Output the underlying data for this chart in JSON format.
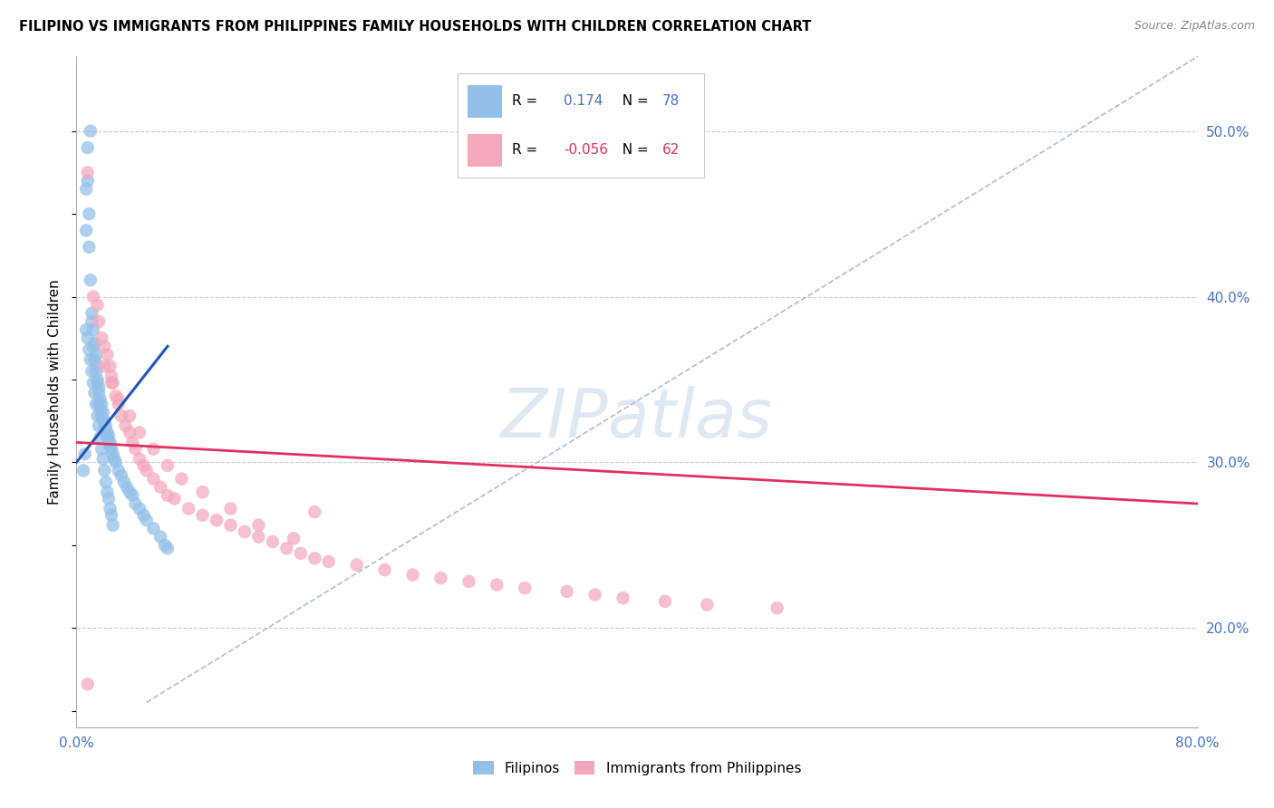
{
  "title": "FILIPINO VS IMMIGRANTS FROM PHILIPPINES FAMILY HOUSEHOLDS WITH CHILDREN CORRELATION CHART",
  "source": "Source: ZipAtlas.com",
  "ylabel": "Family Households with Children",
  "x_min": 0.0,
  "x_max": 0.8,
  "y_min": 0.14,
  "y_max": 0.545,
  "y_ticks": [
    0.2,
    0.3,
    0.4,
    0.5
  ],
  "blue_color": "#92C0E8",
  "pink_color": "#F5A8BB",
  "blue_line_color": "#2255BB",
  "pink_line_color": "#E03060",
  "dashed_line_color": "#AABFD8",
  "watermark_text": "ZIPatlas",
  "legend_r_blue": "0.174",
  "legend_n_blue": "78",
  "legend_r_pink": "-0.056",
  "legend_n_pink": "62",
  "blue_x": [
    0.005,
    0.006,
    0.007,
    0.007,
    0.008,
    0.008,
    0.009,
    0.009,
    0.01,
    0.01,
    0.011,
    0.011,
    0.012,
    0.012,
    0.013,
    0.013,
    0.014,
    0.014,
    0.015,
    0.015,
    0.015,
    0.016,
    0.016,
    0.016,
    0.017,
    0.017,
    0.018,
    0.018,
    0.019,
    0.019,
    0.02,
    0.02,
    0.021,
    0.021,
    0.022,
    0.022,
    0.023,
    0.023,
    0.024,
    0.024,
    0.025,
    0.026,
    0.027,
    0.028,
    0.03,
    0.032,
    0.034,
    0.036,
    0.038,
    0.04,
    0.042,
    0.045,
    0.048,
    0.05,
    0.055,
    0.06,
    0.063,
    0.065,
    0.007,
    0.008,
    0.009,
    0.01,
    0.011,
    0.012,
    0.013,
    0.014,
    0.015,
    0.016,
    0.017,
    0.018,
    0.019,
    0.02,
    0.021,
    0.022,
    0.023,
    0.024,
    0.025,
    0.026
  ],
  "blue_y": [
    0.295,
    0.305,
    0.44,
    0.465,
    0.49,
    0.47,
    0.45,
    0.43,
    0.41,
    0.5,
    0.385,
    0.39,
    0.37,
    0.38,
    0.362,
    0.372,
    0.355,
    0.365,
    0.35,
    0.358,
    0.348,
    0.342,
    0.335,
    0.345,
    0.332,
    0.338,
    0.328,
    0.335,
    0.325,
    0.33,
    0.32,
    0.325,
    0.318,
    0.322,
    0.315,
    0.318,
    0.312,
    0.316,
    0.31,
    0.312,
    0.308,
    0.305,
    0.302,
    0.3,
    0.295,
    0.292,
    0.288,
    0.285,
    0.282,
    0.28,
    0.275,
    0.272,
    0.268,
    0.265,
    0.26,
    0.255,
    0.25,
    0.248,
    0.38,
    0.375,
    0.368,
    0.362,
    0.355,
    0.348,
    0.342,
    0.335,
    0.328,
    0.322,
    0.315,
    0.308,
    0.302,
    0.295,
    0.288,
    0.282,
    0.278,
    0.272,
    0.268,
    0.262
  ],
  "pink_x": [
    0.008,
    0.012,
    0.015,
    0.016,
    0.018,
    0.02,
    0.022,
    0.024,
    0.025,
    0.026,
    0.028,
    0.03,
    0.032,
    0.035,
    0.038,
    0.04,
    0.042,
    0.045,
    0.048,
    0.05,
    0.055,
    0.06,
    0.065,
    0.07,
    0.08,
    0.09,
    0.1,
    0.11,
    0.12,
    0.13,
    0.14,
    0.15,
    0.16,
    0.17,
    0.18,
    0.2,
    0.22,
    0.24,
    0.26,
    0.28,
    0.3,
    0.32,
    0.35,
    0.37,
    0.39,
    0.42,
    0.45,
    0.5,
    0.17,
    0.02,
    0.025,
    0.03,
    0.038,
    0.045,
    0.055,
    0.065,
    0.075,
    0.09,
    0.11,
    0.13,
    0.155,
    0.008
  ],
  "pink_y": [
    0.475,
    0.4,
    0.395,
    0.385,
    0.375,
    0.37,
    0.365,
    0.358,
    0.352,
    0.348,
    0.34,
    0.335,
    0.328,
    0.322,
    0.318,
    0.312,
    0.308,
    0.302,
    0.298,
    0.295,
    0.29,
    0.285,
    0.28,
    0.278,
    0.272,
    0.268,
    0.265,
    0.262,
    0.258,
    0.255,
    0.252,
    0.248,
    0.245,
    0.242,
    0.24,
    0.238,
    0.235,
    0.232,
    0.23,
    0.228,
    0.226,
    0.224,
    0.222,
    0.22,
    0.218,
    0.216,
    0.214,
    0.212,
    0.27,
    0.358,
    0.348,
    0.338,
    0.328,
    0.318,
    0.308,
    0.298,
    0.29,
    0.282,
    0.272,
    0.262,
    0.254,
    0.166
  ],
  "blue_trendline_x": [
    0.0,
    0.065
  ],
  "blue_trendline_y": [
    0.3,
    0.37
  ],
  "pink_trendline_x": [
    0.0,
    0.8
  ],
  "pink_trendline_y": [
    0.312,
    0.275
  ],
  "dashed_trendline_x": [
    0.05,
    0.8
  ],
  "dashed_trendline_y": [
    0.155,
    0.545
  ],
  "legend_label_blue": "Filipinos",
  "legend_label_pink": "Immigrants from Philippines"
}
